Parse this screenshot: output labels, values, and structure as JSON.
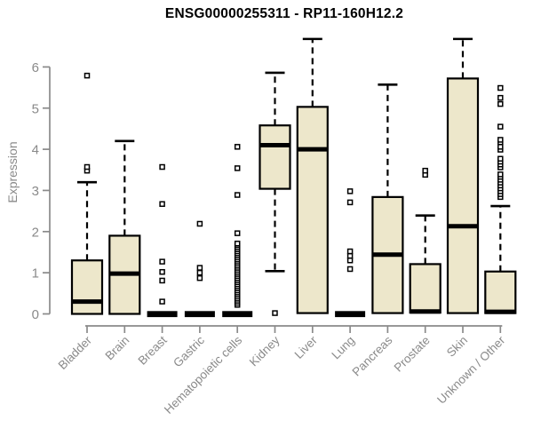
{
  "figure": {
    "background": "#ffffff"
  },
  "chart_data": {
    "type": "boxplot",
    "title": "ENSG00000255311 - RP11-160H12.2",
    "ylabel": "Expression",
    "xlabel": "",
    "ylim": [
      0,
      6
    ],
    "yticks": [
      0,
      1,
      2,
      3,
      4,
      5,
      6
    ],
    "grid": false,
    "legend": "none",
    "categories": [
      "Bladder",
      "Brain",
      "Breast",
      "Gastric",
      "Hematopoietic cells",
      "Kidney",
      "Liver",
      "Lung",
      "Pancreas",
      "Prostate",
      "Skin",
      "Unknown / Other"
    ],
    "series": [
      {
        "name": "Bladder",
        "slug": "bladder",
        "q1": 0,
        "median": 0.3,
        "q3": 1.3,
        "whisker_low": 0,
        "whisker_high": 3.2,
        "outliers": [
          3.48,
          3.57,
          5.79
        ]
      },
      {
        "name": "Brain",
        "slug": "brain",
        "q1": 0,
        "median": 0.98,
        "q3": 1.9,
        "whisker_low": 0,
        "whisker_high": 4.2,
        "outliers": []
      },
      {
        "name": "Breast",
        "slug": "breast",
        "q1": 0,
        "median": 0,
        "q3": 0,
        "whisker_low": 0,
        "whisker_high": 0,
        "outliers": [
          0.3,
          0.81,
          1.02,
          1.27,
          2.67,
          3.57
        ]
      },
      {
        "name": "Gastric",
        "slug": "gastric",
        "q1": 0,
        "median": 0,
        "q3": 0,
        "whisker_low": 0,
        "whisker_high": 0,
        "outliers": [
          0.87,
          1.0,
          1.12,
          2.19
        ]
      },
      {
        "name": "Hematopoietic cells",
        "slug": "hematopoietic-cells",
        "q1": 0,
        "median": 0,
        "q3": 0,
        "whisker_low": 0,
        "whisker_high": 0,
        "outliers": [
          0.22,
          0.27,
          0.32,
          0.37,
          0.42,
          0.47,
          0.52,
          0.57,
          0.62,
          0.67,
          0.72,
          0.77,
          0.82,
          0.87,
          0.92,
          0.97,
          1.02,
          1.07,
          1.12,
          1.17,
          1.22,
          1.27,
          1.32,
          1.37,
          1.42,
          1.47,
          1.52,
          1.57,
          1.62,
          1.67,
          1.71,
          1.96,
          2.89,
          3.54,
          4.06
        ]
      },
      {
        "name": "Kidney",
        "slug": "kidney",
        "q1": 3.04,
        "median": 4.1,
        "q3": 4.58,
        "whisker_low": 1.04,
        "whisker_high": 5.86,
        "outliers": [
          0.02
        ]
      },
      {
        "name": "Liver",
        "slug": "liver",
        "q1": 0.02,
        "median": 4.0,
        "q3": 5.03,
        "whisker_low": 0.02,
        "whisker_high": 6.68,
        "outliers": []
      },
      {
        "name": "Lung",
        "slug": "lung",
        "q1": 0,
        "median": 0,
        "q3": 0,
        "whisker_low": 0,
        "whisker_high": 0,
        "outliers": [
          1.09,
          1.3,
          1.41,
          1.52,
          2.71,
          2.98
        ]
      },
      {
        "name": "Pancreas",
        "slug": "pancreas",
        "q1": 0.02,
        "median": 1.44,
        "q3": 2.84,
        "whisker_low": 0.02,
        "whisker_high": 5.57,
        "outliers": []
      },
      {
        "name": "Prostate",
        "slug": "prostate",
        "q1": 0.03,
        "median": 0.06,
        "q3": 1.21,
        "whisker_low": 0.03,
        "whisker_high": 2.39,
        "outliers": [
          3.38,
          3.48
        ]
      },
      {
        "name": "Skin",
        "slug": "skin",
        "q1": 0.02,
        "median": 2.13,
        "q3": 5.72,
        "whisker_low": 0.02,
        "whisker_high": 6.68,
        "outliers": []
      },
      {
        "name": "Unknown / Other",
        "slug": "unknown-other",
        "q1": 0.02,
        "median": 0.05,
        "q3": 1.03,
        "whisker_low": 0.02,
        "whisker_high": 2.62,
        "outliers": [
          2.84,
          2.91,
          2.98,
          3.05,
          3.12,
          3.19,
          3.26,
          3.33,
          3.39,
          3.56,
          3.63,
          3.7,
          3.77,
          3.99,
          4.06,
          4.17,
          4.23,
          4.55,
          5.1,
          5.25,
          5.49
        ]
      }
    ],
    "colors": {
      "box_fill": "#EDE7CB",
      "box_border": "#000000",
      "median": "#000000",
      "outlier_fill": "#ffffff",
      "outlier_border": "#000000",
      "axis": "#8a8a8a",
      "tick_label": "#8a8a8a",
      "title": "#000000"
    }
  }
}
